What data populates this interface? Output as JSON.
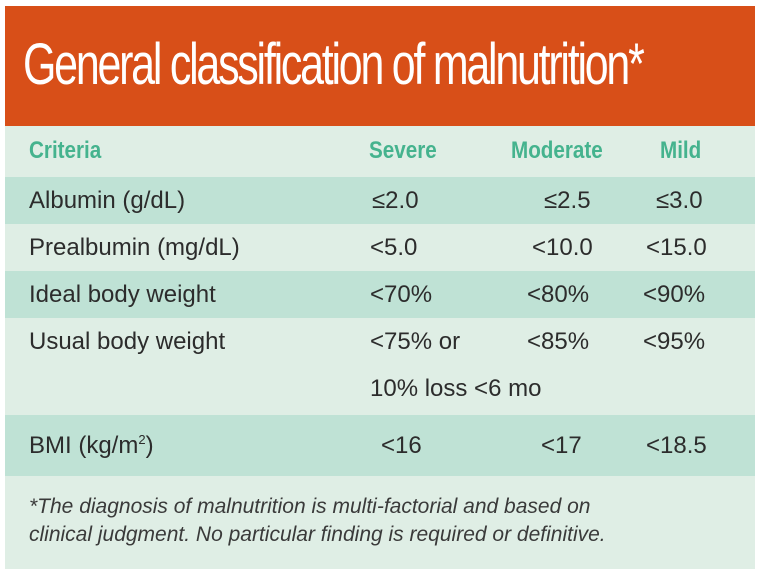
{
  "title": "General classification of malnutrition*",
  "columns": {
    "criteria": "Criteria",
    "severe": "Severe",
    "moderate": "Moderate",
    "mild": "Mild"
  },
  "rows": [
    {
      "label": "Albumin (g/dL)",
      "severe": "≤2.0",
      "moderate": "≤2.5",
      "mild": "≤3.0"
    },
    {
      "label": "Prealbumin (mg/dL)",
      "severe": "<5.0",
      "moderate": "<10.0",
      "mild": "<15.0"
    },
    {
      "label": "Ideal body weight",
      "severe": "<70%",
      "moderate": "<80%",
      "mild": "<90%"
    },
    {
      "label": "Usual body weight",
      "severe": "<75% or",
      "severe_line2": "10% loss <6 mo",
      "moderate": "<85%",
      "mild": "<95%"
    },
    {
      "label": "BMI (kg/m",
      "label_sup": "2",
      "label_end": ")",
      "severe": "<16",
      "moderate": "<17",
      "mild": "<18.5"
    }
  ],
  "footnote": "*The diagnosis of malnutrition is multi-factorial and based on\nclinical judgment. No particular finding is required or definitive.",
  "colors": {
    "header_bg": "#d84f18",
    "table_bg": "#dfeee5",
    "band_bg": "#bfe2d5",
    "heading_text": "#45b38e"
  }
}
